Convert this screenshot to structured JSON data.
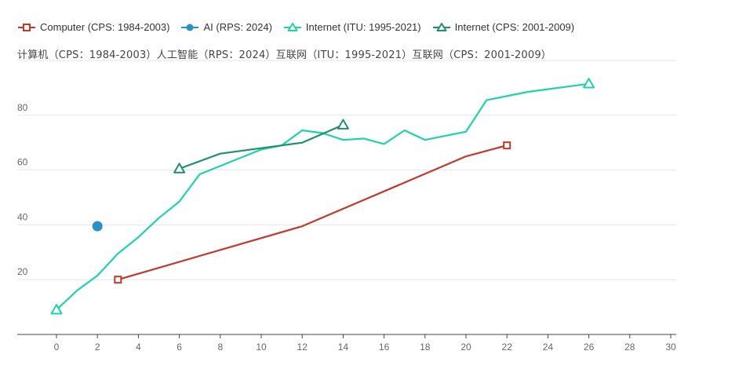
{
  "legend": [
    {
      "label": "Computer (CPS: 1984-2003)",
      "color": "#c0392b",
      "marker": "square"
    },
    {
      "label": "AI (RPS: 2024)",
      "color": "#2e8fc4",
      "marker": "circle"
    },
    {
      "label": "Internet (ITU: 1995-2021)",
      "color": "#1fd3a8",
      "marker": "triangle"
    },
    {
      "label": "Internet (CPS: 2001-2009)",
      "color": "#1f8f70",
      "marker": "triangle"
    }
  ],
  "subtitle": "计算机（CPS：1984-2003）人工智能（RPS：2024）互联网（ITU：1995-2021）互联网（CPS：2001-2009）",
  "chart_data": {
    "type": "line",
    "title": "",
    "xlabel": "",
    "ylabel": "",
    "xlim": [
      -1,
      30
    ],
    "ylim": [
      0,
      100
    ],
    "x_ticks": [
      0,
      2,
      4,
      6,
      8,
      10,
      12,
      14,
      16,
      18,
      20,
      22,
      24,
      26,
      28,
      30
    ],
    "y_ticks": [
      20,
      40,
      60,
      80
    ],
    "grid": "horizontal",
    "legend_position": "top-left",
    "series": [
      {
        "name": "Computer (CPS: 1984-2003)",
        "color": "#c0392b",
        "marker": "square",
        "points": [
          [
            3,
            20
          ],
          [
            12,
            39.5
          ],
          [
            20,
            65
          ],
          [
            22,
            69
          ]
        ],
        "marker_points": [
          [
            3,
            20
          ],
          [
            22,
            69
          ]
        ]
      },
      {
        "name": "AI (RPS: 2024)",
        "color": "#2e8fc4",
        "marker": "circle",
        "points": [
          [
            2,
            39.5
          ]
        ],
        "marker_points": [
          [
            2,
            39.5
          ]
        ]
      },
      {
        "name": "Internet (ITU: 1995-2021)",
        "color": "#1fd3a8",
        "marker": "triangle",
        "points": [
          [
            0,
            9
          ],
          [
            1,
            16
          ],
          [
            2,
            21.5
          ],
          [
            3,
            29.5
          ],
          [
            4,
            35.5
          ],
          [
            5,
            42.5
          ],
          [
            6,
            48.5
          ],
          [
            7,
            58.5
          ],
          [
            8,
            61.5
          ],
          [
            9,
            64.5
          ],
          [
            10,
            67.5
          ],
          [
            11,
            69
          ],
          [
            12,
            74.5
          ],
          [
            13,
            73.5
          ],
          [
            14,
            71
          ],
          [
            15,
            71.5
          ],
          [
            16,
            69.5
          ],
          [
            17,
            74.5
          ],
          [
            18,
            71
          ],
          [
            19,
            72.5
          ],
          [
            20,
            74
          ],
          [
            21,
            85.5
          ],
          [
            22,
            87
          ],
          [
            23,
            88.5
          ],
          [
            24,
            89.5
          ],
          [
            25,
            90.5
          ],
          [
            26,
            91.5
          ]
        ],
        "marker_points": [
          [
            0,
            9
          ],
          [
            26,
            91.5
          ]
        ]
      },
      {
        "name": "Internet (CPS: 2001-2009)",
        "color": "#1f8f70",
        "marker": "triangle",
        "points": [
          [
            6,
            60.5
          ],
          [
            8,
            66
          ],
          [
            10,
            68
          ],
          [
            12,
            70
          ],
          [
            14,
            76.5
          ]
        ],
        "marker_points": [
          [
            6,
            60.5
          ],
          [
            14,
            76.5
          ]
        ]
      }
    ]
  }
}
